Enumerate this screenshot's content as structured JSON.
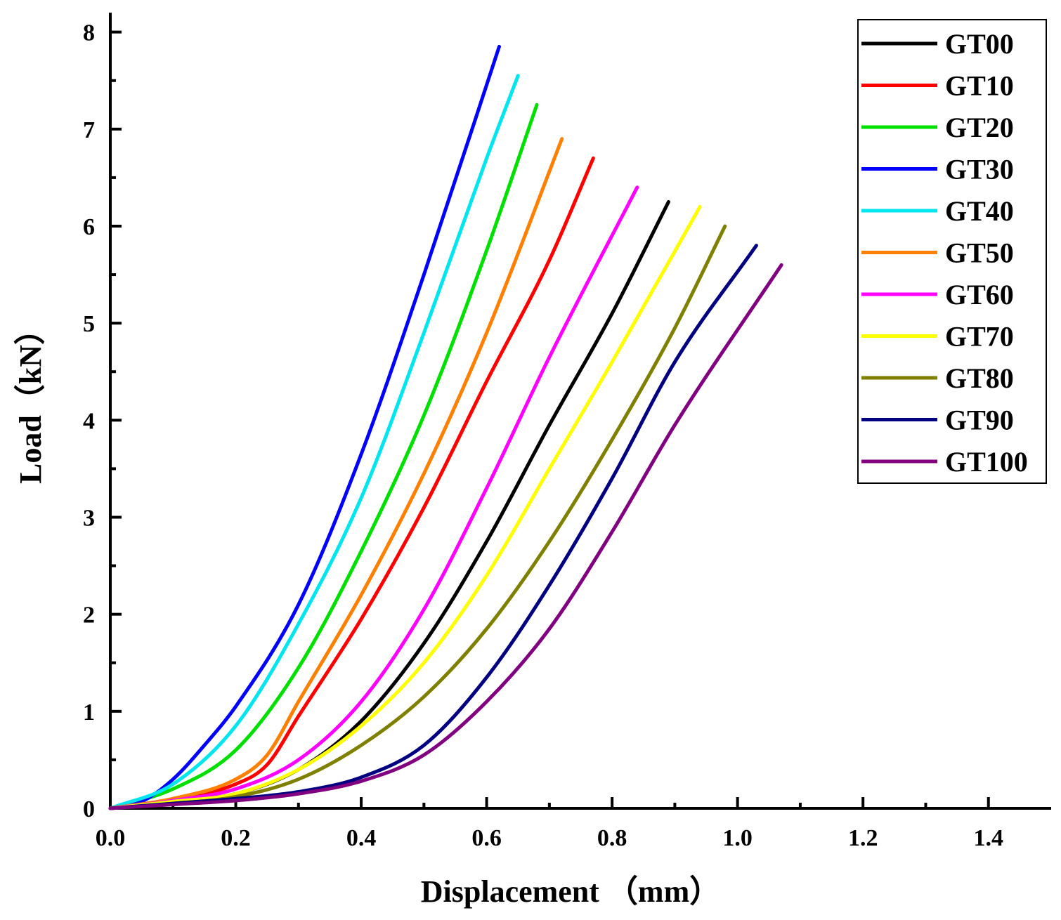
{
  "chart_data": {
    "type": "line",
    "title": "",
    "xlabel": "Displacement （mm）",
    "ylabel": "Load（kN）",
    "xlim": [
      0,
      1.5
    ],
    "ylim": [
      0,
      8.2
    ],
    "xticks": [
      "0.0",
      "0.2",
      "0.4",
      "0.6",
      "0.8",
      "1.0",
      "1.2",
      "1.4"
    ],
    "xtick_values": [
      0,
      0.2,
      0.4,
      0.6,
      0.8,
      1.0,
      1.2,
      1.4
    ],
    "yticks": [
      "0",
      "1",
      "2",
      "3",
      "4",
      "5",
      "6",
      "7",
      "8"
    ],
    "ytick_values": [
      0,
      1,
      2,
      3,
      4,
      5,
      6,
      7,
      8
    ],
    "grid": false,
    "legend_position": "top-right",
    "series": [
      {
        "name": "GT00",
        "color": "#000000",
        "x": [
          0,
          0.1,
          0.2,
          0.3,
          0.4,
          0.5,
          0.6,
          0.7,
          0.8,
          0.89
        ],
        "y": [
          0,
          0.07,
          0.15,
          0.4,
          0.9,
          1.7,
          2.75,
          3.95,
          5.1,
          6.25
        ]
      },
      {
        "name": "GT10",
        "color": "#ff0000",
        "x": [
          0,
          0.1,
          0.2,
          0.25,
          0.3,
          0.4,
          0.5,
          0.6,
          0.7,
          0.77
        ],
        "y": [
          0,
          0.09,
          0.25,
          0.45,
          0.95,
          1.95,
          3.1,
          4.4,
          5.65,
          6.7
        ]
      },
      {
        "name": "GT20",
        "color": "#00e000",
        "x": [
          0,
          0.1,
          0.2,
          0.3,
          0.4,
          0.5,
          0.6,
          0.68
        ],
        "y": [
          0,
          0.2,
          0.6,
          1.45,
          2.65,
          4.05,
          5.75,
          7.25
        ]
      },
      {
        "name": "GT30",
        "color": "#0000ff",
        "x": [
          0,
          0.05,
          0.1,
          0.15,
          0.2,
          0.3,
          0.4,
          0.5,
          0.62
        ],
        "y": [
          0,
          0.07,
          0.3,
          0.65,
          1.05,
          2.1,
          3.65,
          5.5,
          7.85
        ]
      },
      {
        "name": "GT40",
        "color": "#00e5ee",
        "x": [
          0,
          0.1,
          0.2,
          0.3,
          0.4,
          0.5,
          0.6,
          0.65
        ],
        "y": [
          0,
          0.25,
          0.85,
          1.9,
          3.2,
          4.9,
          6.7,
          7.55
        ]
      },
      {
        "name": "GT50",
        "color": "#ff8000",
        "x": [
          0,
          0.1,
          0.2,
          0.25,
          0.3,
          0.4,
          0.5,
          0.6,
          0.72
        ],
        "y": [
          0,
          0.1,
          0.3,
          0.55,
          1.1,
          2.2,
          3.45,
          4.9,
          6.9
        ]
      },
      {
        "name": "GT60",
        "color": "#ff00ff",
        "x": [
          0,
          0.1,
          0.2,
          0.3,
          0.4,
          0.5,
          0.6,
          0.7,
          0.84
        ],
        "y": [
          0,
          0.08,
          0.2,
          0.5,
          1.1,
          2.05,
          3.3,
          4.65,
          6.4
        ]
      },
      {
        "name": "GT70",
        "color": "#ffff00",
        "x": [
          0,
          0.1,
          0.2,
          0.3,
          0.4,
          0.5,
          0.6,
          0.7,
          0.8,
          0.94
        ],
        "y": [
          0,
          0.07,
          0.15,
          0.4,
          0.85,
          1.5,
          2.4,
          3.5,
          4.6,
          6.2
        ]
      },
      {
        "name": "GT80",
        "color": "#808000",
        "x": [
          0,
          0.1,
          0.2,
          0.3,
          0.4,
          0.5,
          0.6,
          0.7,
          0.8,
          0.9,
          0.98
        ],
        "y": [
          0,
          0.05,
          0.12,
          0.3,
          0.65,
          1.15,
          1.85,
          2.75,
          3.8,
          4.95,
          6.0
        ]
      },
      {
        "name": "GT90",
        "color": "#000080",
        "x": [
          0,
          0.1,
          0.2,
          0.3,
          0.4,
          0.5,
          0.6,
          0.7,
          0.8,
          0.9,
          1.03
        ],
        "y": [
          0,
          0.05,
          0.1,
          0.17,
          0.32,
          0.65,
          1.35,
          2.3,
          3.4,
          4.6,
          5.8
        ]
      },
      {
        "name": "GT100",
        "color": "#800080",
        "x": [
          0,
          0.1,
          0.2,
          0.3,
          0.4,
          0.5,
          0.6,
          0.7,
          0.8,
          0.9,
          1.07
        ],
        "y": [
          0,
          0.04,
          0.08,
          0.15,
          0.28,
          0.55,
          1.1,
          1.85,
          2.85,
          3.95,
          5.6
        ]
      }
    ]
  }
}
